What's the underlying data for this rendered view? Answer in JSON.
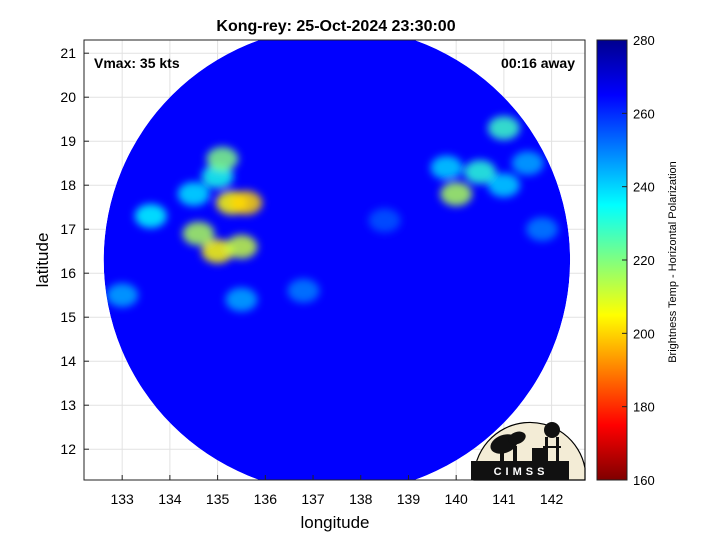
{
  "chart_data": {
    "type": "heatmap",
    "title": "Kong-rey: 25-Oct-2024 23:30:00",
    "xlabel": "longitude",
    "ylabel": "latitude",
    "xlim": [
      132.2,
      142.7
    ],
    "ylim": [
      11.3,
      21.3
    ],
    "xticks": [
      "133",
      "134",
      "135",
      "136",
      "137",
      "138",
      "139",
      "140",
      "141",
      "142"
    ],
    "yticks": [
      "12",
      "13",
      "14",
      "15",
      "16",
      "17",
      "18",
      "19",
      "20",
      "21"
    ],
    "grid": true,
    "annotations": {
      "vmax": "Vmax: 35 kts",
      "time_away": "00:16 away"
    },
    "colorbar": {
      "label": "Brightness Temp - Horizontal Polarization",
      "range": [
        160,
        280
      ],
      "ticks": [
        "160",
        "180",
        "200",
        "220",
        "240",
        "260",
        "280"
      ],
      "colormap": [
        "#7f0000",
        "#ff0000",
        "#ff8000",
        "#ffff00",
        "#80ff80",
        "#00ffff",
        "#0080ff",
        "#0000ff",
        "#00008f"
      ]
    },
    "swath": {
      "center_lon": 137.5,
      "center_lat": 16.3,
      "radius_deg": 5.3,
      "background_temp": 265
    },
    "features": [
      {
        "lon": 135.0,
        "lat": 16.5,
        "temp": 205
      },
      {
        "lon": 134.6,
        "lat": 16.9,
        "temp": 215
      },
      {
        "lon": 135.5,
        "lat": 16.6,
        "temp": 212
      },
      {
        "lon": 135.3,
        "lat": 17.6,
        "temp": 205
      },
      {
        "lon": 135.6,
        "lat": 17.6,
        "temp": 200
      },
      {
        "lon": 135.0,
        "lat": 18.2,
        "temp": 232
      },
      {
        "lon": 135.1,
        "lat": 18.6,
        "temp": 220
      },
      {
        "lon": 134.5,
        "lat": 17.8,
        "temp": 238
      },
      {
        "lon": 133.6,
        "lat": 17.3,
        "temp": 235
      },
      {
        "lon": 133.0,
        "lat": 15.5,
        "temp": 245
      },
      {
        "lon": 135.5,
        "lat": 15.4,
        "temp": 245
      },
      {
        "lon": 136.8,
        "lat": 15.6,
        "temp": 250
      },
      {
        "lon": 140.0,
        "lat": 17.8,
        "temp": 215
      },
      {
        "lon": 140.5,
        "lat": 18.3,
        "temp": 230
      },
      {
        "lon": 141.0,
        "lat": 18.0,
        "temp": 240
      },
      {
        "lon": 141.0,
        "lat": 19.3,
        "temp": 228
      },
      {
        "lon": 141.5,
        "lat": 18.5,
        "temp": 245
      },
      {
        "lon": 139.8,
        "lat": 18.4,
        "temp": 240
      },
      {
        "lon": 141.8,
        "lat": 17.0,
        "temp": 250
      },
      {
        "lon": 138.5,
        "lat": 17.2,
        "temp": 255
      }
    ]
  },
  "logo": {
    "text": "CIMSS"
  }
}
